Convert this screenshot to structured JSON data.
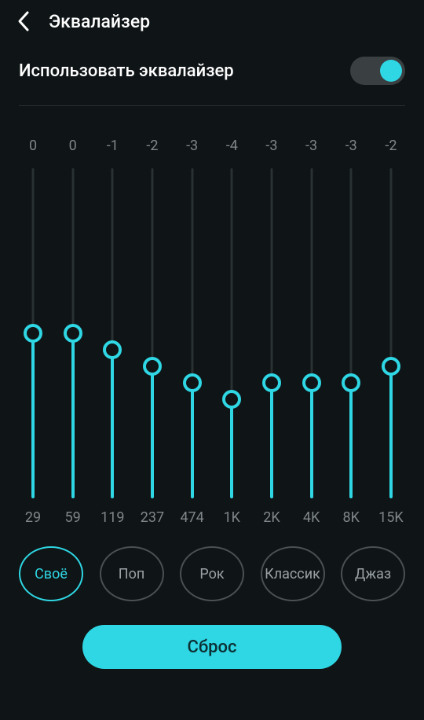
{
  "colors": {
    "background": "#0f1416",
    "accent": "#2fd6e3",
    "muted_text": "#7f8689",
    "track": "#2a3133",
    "toggle_track": "#3a3f42",
    "preset_border": "#4a5053",
    "divider": "#2a2f32"
  },
  "header": {
    "title": "Эквалайзер"
  },
  "toggle": {
    "label": "Использовать эквалайзер",
    "on": true
  },
  "equalizer": {
    "range": {
      "min": -10,
      "max": 10
    },
    "bands": [
      {
        "value": 0,
        "freq": "29"
      },
      {
        "value": 0,
        "freq": "59"
      },
      {
        "value": -1,
        "freq": "119"
      },
      {
        "value": -2,
        "freq": "237"
      },
      {
        "value": -3,
        "freq": "474"
      },
      {
        "value": -4,
        "freq": "1K"
      },
      {
        "value": -3,
        "freq": "2K"
      },
      {
        "value": -3,
        "freq": "4K"
      },
      {
        "value": -3,
        "freq": "8K"
      },
      {
        "value": -2,
        "freq": "15K"
      }
    ]
  },
  "presets": [
    {
      "label": "Своё",
      "active": true
    },
    {
      "label": "Поп",
      "active": false
    },
    {
      "label": "Рок",
      "active": false
    },
    {
      "label": "Классик",
      "active": false
    },
    {
      "label": "Джаз",
      "active": false
    }
  ],
  "reset_label": "Сброс"
}
